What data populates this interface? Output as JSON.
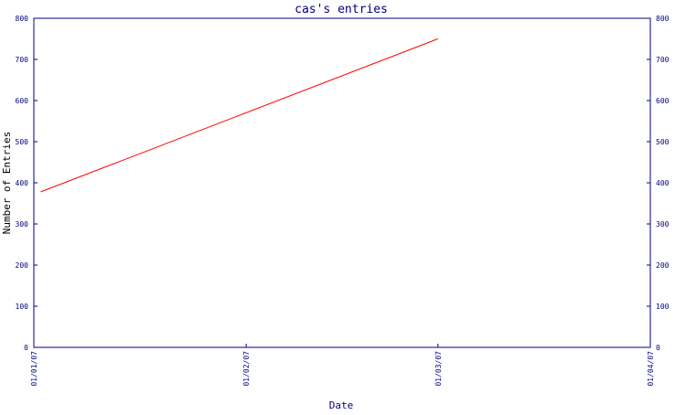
{
  "chart_data": {
    "type": "line",
    "title": "cas's entries",
    "xlabel": "Date",
    "ylabel": "Number of Entries",
    "x_ticks": [
      "01/01/07",
      "01/02/07",
      "01/03/07",
      "01/04/07"
    ],
    "y_ticks": [
      0,
      100,
      200,
      300,
      400,
      500,
      600,
      700,
      800
    ],
    "ylim": [
      0,
      800
    ],
    "xlim": [
      "2007-01-01",
      "2007-04-01"
    ],
    "right_axis_mirrored": true,
    "grid": false,
    "series": [
      {
        "color": "#ff0000",
        "points": [
          {
            "x": "2007-01-02",
            "y": 378
          },
          {
            "x": "2007-03-01",
            "y": 750
          }
        ]
      }
    ]
  }
}
